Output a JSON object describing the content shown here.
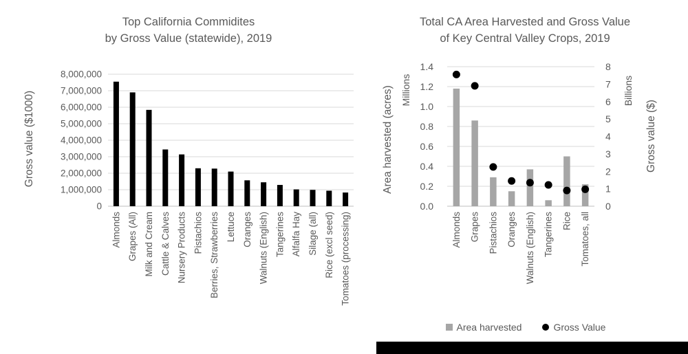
{
  "style_colors": {
    "text": "#595959",
    "gridline": "#d9d9d9",
    "axis_line": "#bfbfbf",
    "left_bar": "#000000",
    "right_bar": "#a6a6a6",
    "dot": "#000000",
    "background": "#ffffff",
    "redaction_bar": "#000000"
  },
  "chart_data": [
    {
      "type": "bar",
      "title_lines": [
        "Top California Commidites",
        "by Gross Value (statewide), 2019"
      ],
      "ylabel": "Gross value ($1000)",
      "ylim": [
        0,
        8000000
      ],
      "ytick_step": 1000000,
      "grid": true,
      "legend_position": "none",
      "bar_color": "#000000",
      "categories": [
        "Almonds",
        "Grapes (All)",
        "Milk and Cream",
        "Cattle & Calves",
        "Nursery Products",
        "Pistachios",
        "Berries, Strawberries",
        "Lettuce",
        "Oranges",
        "Walnuts (English)",
        "Tangerines",
        "Alfalfa Hay",
        "Silage (all)",
        "Rice (excl seed)",
        "Tomatoes (processing)"
      ],
      "values": [
        7550000,
        6900000,
        5840000,
        3440000,
        3140000,
        2300000,
        2280000,
        2100000,
        1570000,
        1450000,
        1290000,
        1020000,
        990000,
        940000,
        830000
      ]
    },
    {
      "type": "bar",
      "subtype": "combo-bar-scatter",
      "title_lines": [
        "Total CA Area Harvested and Gross Value",
        "of Key Central Valley Crops, 2019"
      ],
      "categories": [
        "Almonds",
        "Grapes",
        "Pistachios",
        "Oranges",
        "Walnuts (English)",
        "Tangerines",
        "Rice",
        "Tomatoes, all"
      ],
      "series": [
        {
          "name": "Area harvested",
          "type": "bar",
          "axis": "left",
          "color": "#a6a6a6",
          "values": [
            1.18,
            0.86,
            0.29,
            0.15,
            0.37,
            0.06,
            0.5,
            0.22
          ]
        },
        {
          "name": "Gross Value",
          "type": "scatter",
          "axis": "right",
          "color": "#000000",
          "values": [
            7.55,
            6.9,
            2.25,
            1.45,
            1.35,
            1.22,
            0.9,
            0.97
          ]
        }
      ],
      "left_axis": {
        "title": "Area harvested (acres)",
        "units": "Millions",
        "lim": [
          0,
          1.4
        ],
        "tick_step": 0.2
      },
      "right_axis": {
        "title": "Gross value ($)",
        "units": "Billions",
        "lim": [
          0,
          8
        ],
        "tick_step": 1
      },
      "grid": true,
      "legend_position": "bottom"
    }
  ]
}
